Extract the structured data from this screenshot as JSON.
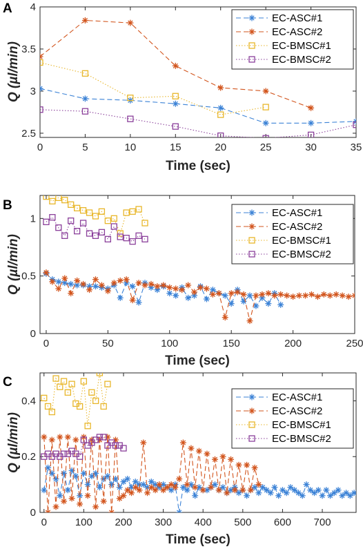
{
  "colors": {
    "EC-ASC#1": "#3b82d6",
    "EC-ASC#2": "#d2541c",
    "EC-BMSC#1": "#e8b62a",
    "EC-BMSC#2": "#8a3f9a",
    "axis": "#262626"
  },
  "chart_data": [
    {
      "panel_label": "A",
      "type": "line",
      "xlabel": "Time (sec)",
      "ylabel": "Q (µl/min)",
      "xlim": [
        0,
        35
      ],
      "ylim": [
        2.45,
        4
      ],
      "xticks": [
        0,
        5,
        10,
        15,
        20,
        25,
        30,
        35
      ],
      "yticks": [
        2.5,
        3,
        3.5,
        4
      ],
      "ytick_labels": [
        "2.5",
        "3",
        "3.5",
        "4"
      ],
      "legend_position": "top-right",
      "series": [
        {
          "name": "EC-ASC#1",
          "marker": "asterisk",
          "linestyle": "dashed",
          "x": [
            0,
            5,
            10,
            15,
            20,
            25,
            30,
            35
          ],
          "y": [
            3.03,
            2.91,
            2.89,
            2.85,
            2.8,
            2.62,
            2.62,
            2.64
          ]
        },
        {
          "name": "EC-ASC#2",
          "marker": "asterisk",
          "linestyle": "dashed",
          "x": [
            0,
            5,
            10,
            15,
            20,
            25,
            30
          ],
          "y": [
            3.41,
            3.84,
            3.81,
            3.3,
            3.04,
            3.0,
            2.8
          ]
        },
        {
          "name": "EC-BMSC#1",
          "marker": "square",
          "linestyle": "dotted",
          "x": [
            0,
            5,
            10,
            15,
            20,
            25
          ],
          "y": [
            3.34,
            3.21,
            2.92,
            2.94,
            2.72,
            2.81
          ]
        },
        {
          "name": "EC-BMSC#2",
          "marker": "square",
          "linestyle": "dotted",
          "x": [
            0,
            5,
            10,
            15,
            20,
            25,
            30,
            35
          ],
          "y": [
            2.78,
            2.76,
            2.67,
            2.58,
            2.47,
            2.44,
            2.48,
            2.6
          ]
        }
      ]
    },
    {
      "panel_label": "B",
      "type": "line",
      "xlabel": "Time (sec)",
      "ylabel": "Q (µl/min)",
      "xlim": [
        -5,
        250
      ],
      "ylim": [
        0,
        1.2
      ],
      "xticks": [
        0,
        50,
        100,
        150,
        200,
        250
      ],
      "yticks": [
        0,
        0.5,
        1
      ],
      "ytick_labels": [
        "0",
        "0.5",
        "1"
      ],
      "legend_position": "top-right",
      "series": [
        {
          "name": "EC-ASC#1",
          "marker": "asterisk",
          "linestyle": "dashed",
          "x": [
            0,
            5,
            10,
            15,
            20,
            25,
            30,
            35,
            40,
            45,
            50,
            55,
            60,
            65,
            70,
            75,
            80,
            85,
            90,
            95,
            100,
            105,
            110,
            115,
            120,
            125,
            130,
            135,
            140,
            145,
            150,
            155,
            160,
            165,
            170,
            175,
            180,
            185,
            190
          ],
          "y": [
            0.52,
            0.47,
            0.45,
            0.44,
            0.43,
            0.42,
            0.42,
            0.41,
            0.41,
            0.4,
            0.39,
            0.42,
            0.31,
            0.44,
            0.41,
            0.27,
            0.44,
            0.4,
            0.38,
            0.41,
            0.35,
            0.33,
            0.4,
            0.31,
            0.33,
            0.41,
            0.3,
            0.38,
            0.35,
            0.33,
            0.26,
            0.38,
            0.28,
            0.33,
            0.24,
            0.31,
            0.26,
            0.35,
            0.25
          ]
        },
        {
          "name": "EC-ASC#2",
          "marker": "asterisk",
          "linestyle": "dashed",
          "x": [
            0,
            5,
            10,
            15,
            20,
            25,
            30,
            35,
            40,
            45,
            50,
            55,
            60,
            65,
            70,
            75,
            80,
            85,
            90,
            95,
            100,
            105,
            110,
            115,
            120,
            125,
            130,
            135,
            140,
            145,
            150,
            155,
            160,
            165,
            170,
            175,
            180,
            185,
            190,
            195,
            200,
            205,
            210,
            215,
            220,
            225,
            230,
            235,
            240,
            245,
            250
          ],
          "y": [
            0.53,
            0.45,
            0.39,
            0.48,
            0.35,
            0.46,
            0.43,
            0.38,
            0.47,
            0.42,
            0.37,
            0.44,
            0.46,
            0.47,
            0.29,
            0.44,
            0.42,
            0.43,
            0.41,
            0.42,
            0.4,
            0.39,
            0.38,
            0.42,
            0.36,
            0.4,
            0.39,
            0.34,
            0.35,
            0.14,
            0.35,
            0.36,
            0.34,
            0.11,
            0.33,
            0.34,
            0.35,
            0.33,
            0.34,
            0.33,
            0.32,
            0.33,
            0.33,
            0.34,
            0.32,
            0.34,
            0.33,
            0.34,
            0.33,
            0.32,
            0.33
          ]
        },
        {
          "name": "EC-BMSC#1",
          "marker": "square",
          "linestyle": "dotted",
          "x": [
            0,
            5,
            10,
            15,
            20,
            25,
            30,
            35,
            40,
            45,
            50,
            55,
            60,
            65,
            70,
            75,
            80
          ],
          "y": [
            1.19,
            1.15,
            1.18,
            1.16,
            1.12,
            1.09,
            1.07,
            1.05,
            1.02,
            1.06,
            0.98,
            1.0,
            0.87,
            1.05,
            1.06,
            1.08,
            0.96
          ]
        },
        {
          "name": "EC-BMSC#2",
          "marker": "square",
          "linestyle": "dotted",
          "x": [
            0,
            5,
            10,
            15,
            20,
            25,
            30,
            35,
            40,
            45,
            50,
            55,
            60,
            65,
            70,
            75,
            80
          ],
          "y": [
            0.97,
            1.01,
            0.92,
            0.85,
            0.98,
            0.89,
            0.96,
            0.87,
            0.85,
            0.88,
            0.82,
            0.93,
            0.84,
            0.83,
            0.8,
            0.85,
            0.82
          ]
        }
      ]
    },
    {
      "panel_label": "C",
      "type": "line",
      "xlabel": "Time (sec)",
      "ylabel": "Q (µl/min)",
      "xlim": [
        -10,
        785
      ],
      "ylim": [
        0,
        0.5
      ],
      "xticks": [
        0,
        100,
        200,
        300,
        400,
        500,
        600,
        700
      ],
      "yticks": [
        0,
        0.2,
        0.4
      ],
      "ytick_labels": [
        "0",
        "0.2",
        "0.4"
      ],
      "legend_position": "top-right",
      "series": [
        {
          "name": "EC-ASC#1",
          "marker": "asterisk",
          "linestyle": "dashed",
          "x": [
            0,
            10,
            20,
            30,
            40,
            50,
            60,
            70,
            80,
            90,
            100,
            110,
            120,
            130,
            140,
            150,
            160,
            170,
            180,
            190,
            200,
            210,
            220,
            230,
            240,
            250,
            260,
            270,
            280,
            290,
            300,
            310,
            320,
            330,
            340,
            350,
            360,
            370,
            380,
            390,
            400,
            410,
            420,
            430,
            440,
            450,
            460,
            470,
            480,
            490,
            500,
            510,
            520,
            530,
            540,
            550,
            560,
            570,
            580,
            590,
            600,
            610,
            620,
            630,
            640,
            650,
            660,
            670,
            680,
            690,
            700,
            710,
            720,
            730,
            740,
            750,
            760,
            770,
            780
          ],
          "y": [
            0.08,
            0.16,
            0.14,
            0.12,
            0.06,
            0.14,
            0.08,
            0.15,
            0.13,
            0.06,
            0.14,
            0.1,
            0.13,
            0.14,
            0.09,
            0.12,
            0.13,
            0.1,
            0.12,
            0.09,
            0.11,
            0.12,
            0.09,
            0.11,
            0.1,
            0.1,
            0.09,
            0.11,
            0.1,
            0.09,
            0.1,
            0.09,
            0.08,
            0.1,
            0.0,
            0.09,
            0.08,
            0.1,
            0.06,
            0.09,
            0.08,
            0.08,
            0.09,
            0.1,
            0.08,
            0.09,
            0.07,
            0.08,
            0.09,
            0.07,
            0.08,
            0.06,
            0.08,
            0.09,
            0.07,
            0.09,
            0.08,
            0.07,
            0.09,
            0.06,
            0.08,
            0.07,
            0.09,
            0.08,
            0.07,
            0.06,
            0.1,
            0.08,
            0.07,
            0.08,
            0.06,
            0.08,
            0.06,
            0.07,
            0.08,
            0.06,
            0.07,
            0.06,
            0.07
          ]
        },
        {
          "name": "EC-ASC#2",
          "marker": "asterisk",
          "linestyle": "dashed",
          "x": [
            0,
            10,
            20,
            30,
            40,
            50,
            60,
            70,
            80,
            90,
            100,
            110,
            120,
            130,
            140,
            150,
            160,
            170,
            180,
            190,
            200,
            210,
            220,
            230,
            240,
            250,
            260,
            270,
            280,
            290,
            300,
            310,
            320,
            330,
            340,
            350,
            360,
            370,
            380,
            390,
            400,
            410,
            420,
            430,
            440,
            450,
            460,
            470,
            480,
            490,
            500,
            510,
            520,
            530,
            540
          ],
          "y": [
            0.27,
            0.0,
            0.26,
            0.02,
            0.27,
            0.04,
            0.27,
            0.05,
            0.26,
            0.03,
            0.27,
            0.06,
            0.26,
            0.02,
            0.26,
            0.04,
            0.27,
            0.0,
            0.26,
            0.05,
            0.06,
            0.08,
            0.07,
            0.09,
            0.08,
            0.25,
            0.07,
            0.09,
            0.08,
            0.1,
            0.08,
            0.09,
            0.1,
            0.09,
            0.12,
            0.25,
            0.1,
            0.23,
            0.09,
            0.22,
            0.08,
            0.21,
            0.09,
            0.19,
            0.08,
            0.2,
            0.07,
            0.19,
            0.08,
            0.17,
            0.08,
            0.17,
            0.08,
            0.16,
            0.1
          ]
        },
        {
          "name": "EC-BMSC#1",
          "marker": "square",
          "linestyle": "dotted",
          "x": [
            0,
            10,
            20,
            30,
            40,
            50,
            60,
            70,
            80,
            90,
            100,
            110,
            120,
            130,
            140,
            150,
            160
          ],
          "y": [
            0.41,
            0.38,
            0.36,
            0.48,
            0.45,
            0.47,
            0.43,
            0.46,
            0.39,
            0.38,
            0.47,
            0.31,
            0.43,
            0.4,
            0.5,
            0.38,
            0.46
          ]
        },
        {
          "name": "EC-BMSC#2",
          "marker": "square",
          "linestyle": "dotted",
          "x": [
            0,
            10,
            20,
            30,
            40,
            50,
            60,
            70,
            80,
            90,
            100,
            110,
            120,
            130,
            140,
            150,
            160,
            170,
            180,
            190,
            200
          ],
          "y": [
            0.2,
            0.21,
            0.2,
            0.21,
            0.2,
            0.21,
            0.21,
            0.22,
            0.21,
            0.2,
            0.26,
            0.24,
            0.25,
            0.26,
            0.27,
            0.27,
            0.24,
            0.25,
            0.24,
            0.24,
            0.23
          ]
        }
      ]
    }
  ]
}
